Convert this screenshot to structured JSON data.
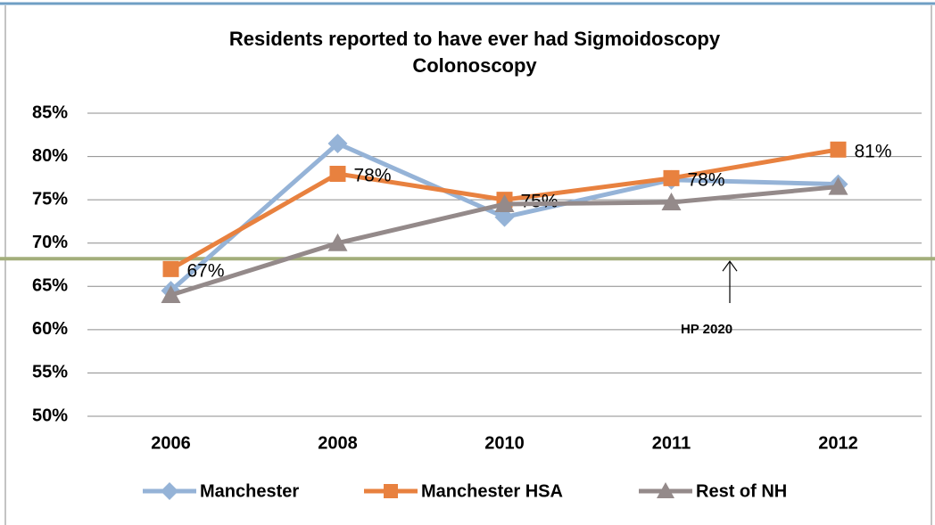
{
  "chart_data": {
    "type": "line",
    "title": [
      "Residents reported to have ever had Sigmoidoscopy",
      "Colonoscopy"
    ],
    "categories": [
      "2006",
      "2008",
      "2010",
      "2011",
      "2012"
    ],
    "series": [
      {
        "name": "Manchester",
        "color": "#95b3d7",
        "marker": "diamond",
        "values": [
          64.5,
          81.5,
          73,
          77.3,
          76.8
        ]
      },
      {
        "name": "Manchester HSA",
        "color": "#e8813f",
        "marker": "square",
        "values": [
          67,
          78,
          75,
          77.5,
          80.8
        ],
        "value_labels": [
          "67%",
          "78%",
          "75%",
          "78%",
          "81%"
        ]
      },
      {
        "name": "Rest of NH",
        "color": "#948a8a",
        "marker": "triangle",
        "values": [
          64,
          70,
          74.5,
          74.7,
          76.5
        ]
      }
    ],
    "ylim": [
      50,
      85
    ],
    "yticks": [
      {
        "value": 50,
        "label": "50%"
      },
      {
        "value": 55,
        "label": "55%"
      },
      {
        "value": 60,
        "label": "60%"
      },
      {
        "value": 65,
        "label": "65%"
      },
      {
        "value": 70,
        "label": "70%"
      },
      {
        "value": 75,
        "label": "75%"
      },
      {
        "value": 80,
        "label": "80%"
      },
      {
        "value": 85,
        "label": "85%"
      }
    ],
    "grid": true,
    "legend": "bottom",
    "target": {
      "value": 68.2,
      "label": "HP 2020",
      "color": "#a3ae7b"
    }
  }
}
